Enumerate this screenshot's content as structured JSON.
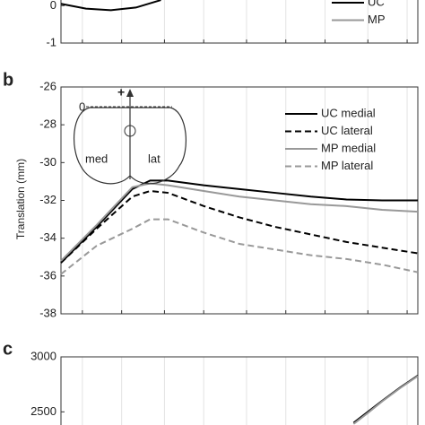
{
  "chart_data": [
    {
      "type": "line",
      "xlim": [
        0,
        100
      ],
      "xticks": [
        6,
        17,
        29,
        40,
        52,
        63,
        74,
        86,
        97
      ],
      "grid": true,
      "ylim": [
        -1,
        0.2
      ],
      "yticks": [
        0,
        -1
      ],
      "legend": "upper right",
      "x": [
        0,
        7,
        14,
        21,
        28
      ],
      "series": [
        {
          "name": "UC",
          "color": "#000000",
          "style": "solid",
          "values": [
            0.05,
            -0.08,
            -0.12,
            -0.05,
            0.15
          ]
        },
        {
          "name": "MP",
          "color": "#999999",
          "style": "solid",
          "values": [
            null,
            null,
            null,
            null,
            null
          ]
        }
      ]
    },
    {
      "type": "line",
      "panel": "b",
      "ylabel": "Translation (mm)",
      "xlim": [
        0,
        100
      ],
      "xticks": [
        6,
        17,
        29,
        40,
        52,
        63,
        74,
        86,
        97
      ],
      "grid": true,
      "ylim": [
        -38,
        -26
      ],
      "yticks": [
        -26,
        -28,
        -30,
        -32,
        -34,
        -36,
        -38
      ],
      "legend": "upper right",
      "annotations": [
        "0",
        "+",
        "med",
        "lat"
      ],
      "x": [
        0,
        10,
        20,
        25,
        30,
        40,
        50,
        60,
        70,
        80,
        90,
        100
      ],
      "series": [
        {
          "name": "UC medial",
          "color": "#000000",
          "style": "solid",
          "values": [
            -35.3,
            -33.4,
            -31.4,
            -30.95,
            -30.95,
            -31.2,
            -31.4,
            -31.6,
            -31.8,
            -31.95,
            -32.0,
            -32.0
          ]
        },
        {
          "name": "UC lateral",
          "color": "#000000",
          "style": "dashed",
          "values": [
            -35.3,
            -33.5,
            -31.8,
            -31.5,
            -31.6,
            -32.3,
            -32.9,
            -33.4,
            -33.8,
            -34.2,
            -34.5,
            -34.8
          ]
        },
        {
          "name": "MP medial",
          "color": "#999999",
          "style": "solid",
          "values": [
            -35.2,
            -33.3,
            -31.3,
            -31.1,
            -31.2,
            -31.5,
            -31.8,
            -32.0,
            -32.2,
            -32.3,
            -32.5,
            -32.6
          ]
        },
        {
          "name": "MP lateral",
          "color": "#999999",
          "style": "dashed",
          "values": [
            -35.9,
            -34.4,
            -33.5,
            -33.0,
            -33.0,
            -33.7,
            -34.3,
            -34.6,
            -34.9,
            -35.1,
            -35.4,
            -35.8
          ]
        }
      ]
    },
    {
      "type": "line",
      "panel": "c",
      "xlim": [
        0,
        100
      ],
      "xticks": [
        6,
        17,
        29,
        40,
        52,
        63,
        74,
        86,
        97
      ],
      "grid": true,
      "ylim": [
        2250,
        3000
      ],
      "yticks": [
        3000,
        2500
      ],
      "x": [
        82,
        86,
        90,
        95,
        100
      ],
      "series": [
        {
          "color": "#000000",
          "style": "solid",
          "values": [
            2400,
            2500,
            2600,
            2720,
            2830
          ]
        },
        {
          "color": "#999999",
          "style": "solid",
          "values": [
            2390,
            2490,
            2595,
            2715,
            2825
          ]
        }
      ]
    }
  ]
}
